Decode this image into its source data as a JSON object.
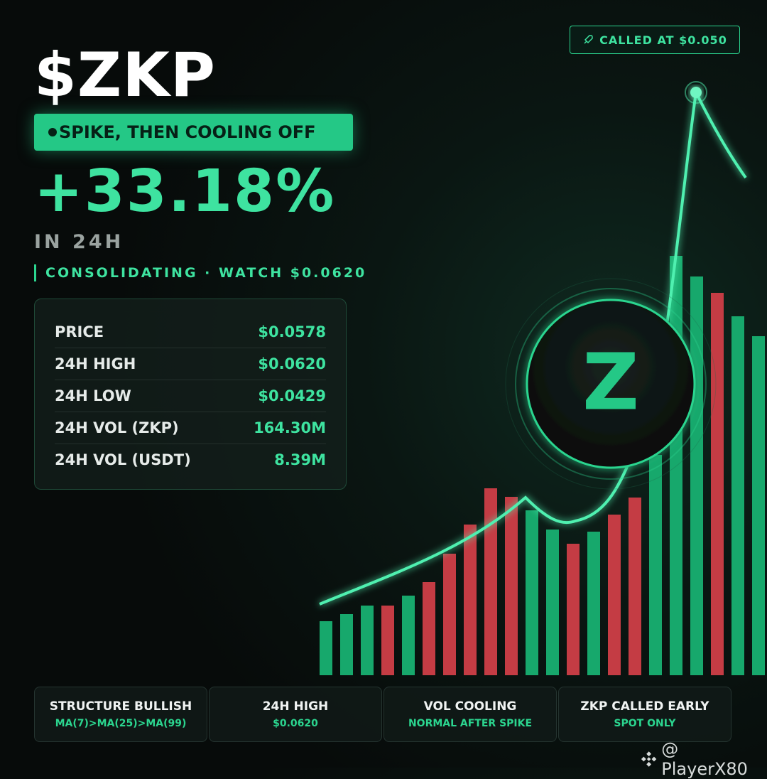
{
  "badge": "CALLED AT $0.050",
  "ticker": "$ZKP",
  "tag": "SPIKE, THEN COOLING OFF",
  "change": "+33.18%",
  "period": "IN 24H",
  "note": "CONSOLIDATING · WATCH $0.0620",
  "stats": [
    {
      "label": "PRICE",
      "value": "$0.0578"
    },
    {
      "label": "24H HIGH",
      "value": "$0.0620"
    },
    {
      "label": "24H LOW",
      "value": "$0.0429"
    },
    {
      "label": "24H VOL (ZKP)",
      "value": "164.30M"
    },
    {
      "label": "24H VOL (USDT)",
      "value": "8.39M"
    }
  ],
  "logo_letter": "Z",
  "cards": [
    {
      "title": "STRUCTURE BULLISH",
      "subtitle": "MA(7)>MA(25)>MA(99)"
    },
    {
      "title": "24H HIGH",
      "subtitle": "$0.0620"
    },
    {
      "title": "VOL COOLING",
      "subtitle": "NORMAL AFTER SPIKE"
    },
    {
      "title": "ZKP CALLED EARLY",
      "subtitle": "SPOT ONLY"
    }
  ],
  "watermark": "@ PlayerX80"
}
